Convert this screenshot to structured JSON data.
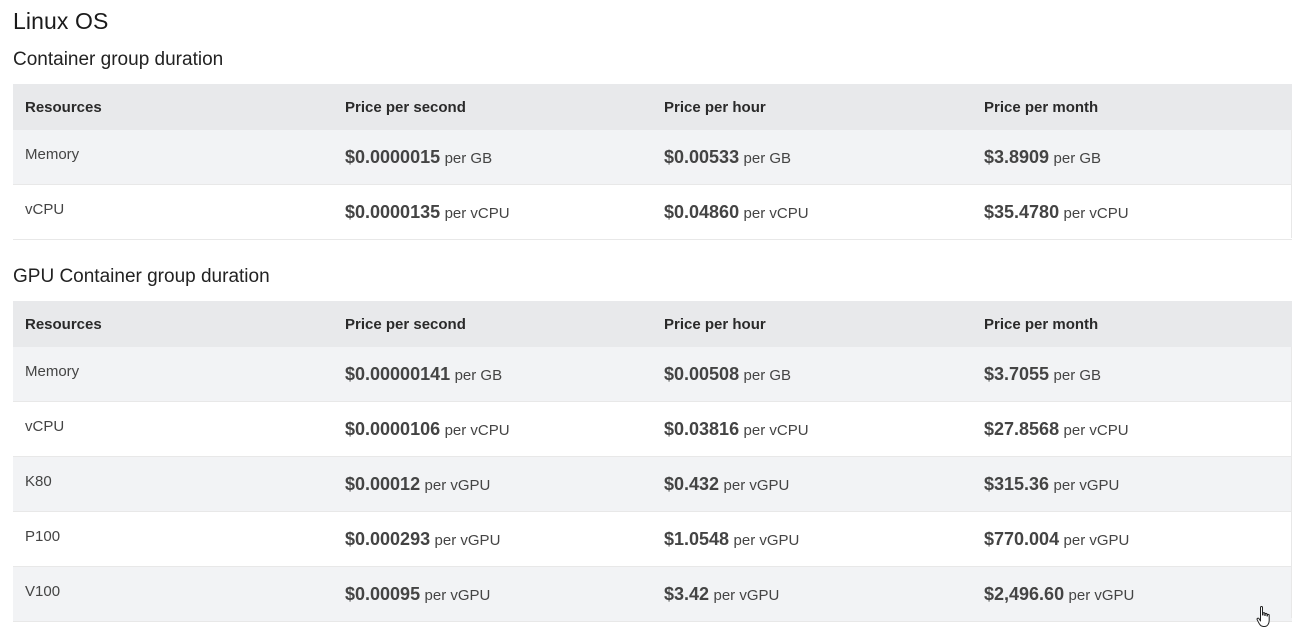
{
  "page": {
    "title": "Linux OS"
  },
  "sections": [
    {
      "title": "Container group duration",
      "headers": [
        "Resources",
        "Price per second",
        "Price per hour",
        "Price per month"
      ],
      "rows": [
        {
          "resource": "Memory",
          "second": {
            "amount": "$0.0000015",
            "unit": "per GB"
          },
          "hour": {
            "amount": "$0.00533",
            "unit": "per GB"
          },
          "month": {
            "amount": "$3.8909",
            "unit": "per GB"
          }
        },
        {
          "resource": "vCPU",
          "second": {
            "amount": "$0.0000135",
            "unit": "per vCPU"
          },
          "hour": {
            "amount": "$0.04860",
            "unit": "per vCPU"
          },
          "month": {
            "amount": "$35.4780",
            "unit": "per vCPU"
          }
        }
      ]
    },
    {
      "title": "GPU Container group duration",
      "headers": [
        "Resources",
        "Price per second",
        "Price per hour",
        "Price per month"
      ],
      "rows": [
        {
          "resource": "Memory",
          "second": {
            "amount": "$0.00000141",
            "unit": "per GB"
          },
          "hour": {
            "amount": "$0.00508",
            "unit": "per GB"
          },
          "month": {
            "amount": "$3.7055",
            "unit": "per GB"
          }
        },
        {
          "resource": "vCPU",
          "second": {
            "amount": "$0.0000106",
            "unit": "per vCPU"
          },
          "hour": {
            "amount": "$0.03816",
            "unit": "per vCPU"
          },
          "month": {
            "amount": "$27.8568",
            "unit": "per vCPU"
          }
        },
        {
          "resource": "K80",
          "second": {
            "amount": "$0.00012",
            "unit": "per vGPU"
          },
          "hour": {
            "amount": "$0.432",
            "unit": "per vGPU"
          },
          "month": {
            "amount": "$315.36",
            "unit": "per vGPU"
          }
        },
        {
          "resource": "P100",
          "second": {
            "amount": "$0.000293",
            "unit": "per vGPU"
          },
          "hour": {
            "amount": "$1.0548",
            "unit": "per vGPU"
          },
          "month": {
            "amount": "$770.004",
            "unit": "per vGPU"
          }
        },
        {
          "resource": "V100",
          "second": {
            "amount": "$0.00095",
            "unit": "per vGPU"
          },
          "hour": {
            "amount": "$3.42",
            "unit": "per vGPU"
          },
          "month": {
            "amount": "$2,496.60",
            "unit": "per vGPU"
          }
        }
      ]
    }
  ],
  "cursor": {
    "icon": "hand-pointer-icon"
  }
}
